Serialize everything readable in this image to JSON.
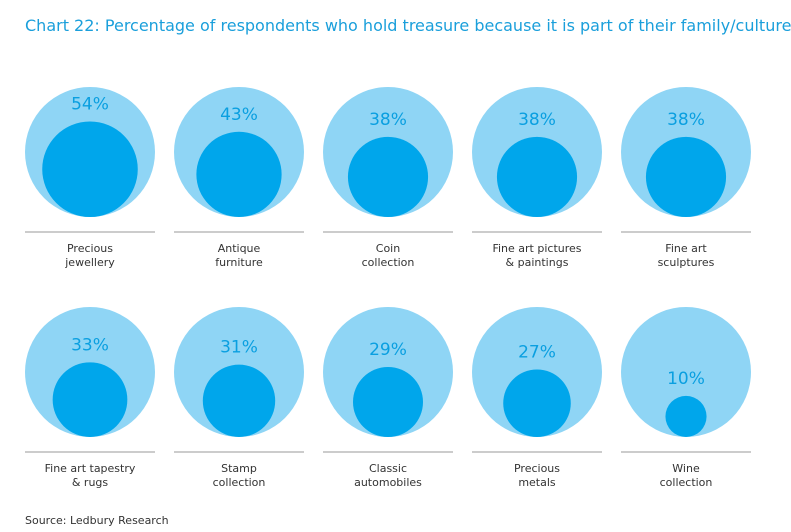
{
  "chart_data": {
    "type": "nested-circle",
    "title": "Chart 22: Percentage of respondents who hold treasure because it is part of their family/culture",
    "categories": [
      "Precious\njewellery",
      "Antique\nfurniture",
      "Coin\ncollection",
      "Fine art pictures\n& paintings",
      "Fine art\nsculptures",
      "Fine art tapestry\n& rugs",
      "Stamp\ncollection",
      "Classic\nautomobiles",
      "Precious\nmetals",
      "Wine\ncollection"
    ],
    "values": [
      54,
      43,
      38,
      38,
      38,
      33,
      31,
      29,
      27,
      10
    ],
    "value_labels": [
      "54%",
      "43%",
      "38%",
      "38%",
      "38%",
      "33%",
      "31%",
      "29%",
      "27%",
      "10%"
    ],
    "ylim": [
      0,
      100
    ],
    "color": "#00a6eb",
    "background_color": "#8fd5f5",
    "source": "Source: Ledbury Research"
  }
}
